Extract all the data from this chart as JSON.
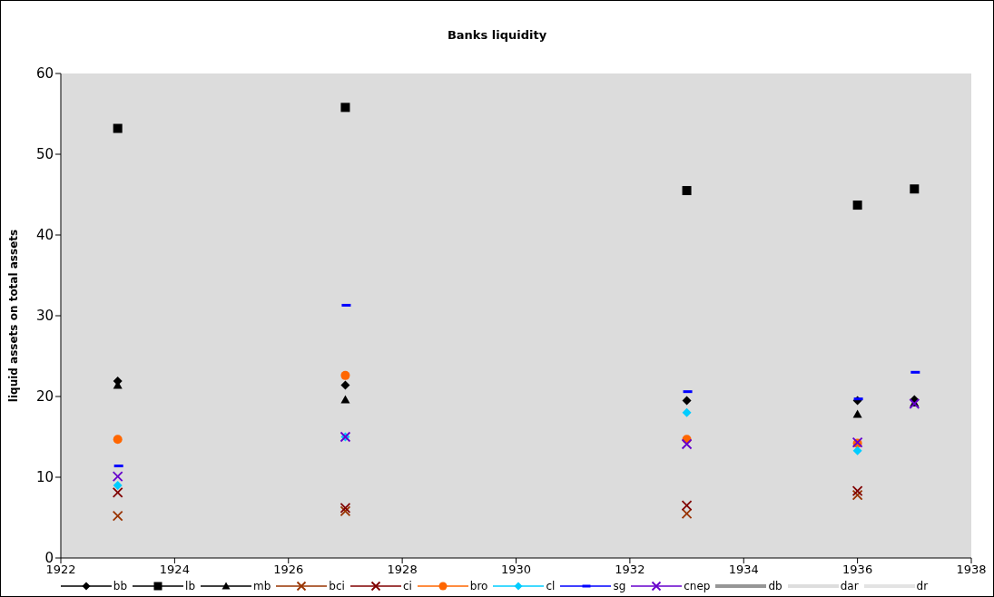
{
  "chart_data": {
    "type": "scatter",
    "title": "Banks liquidity",
    "ylabel": "liquid assets on total assets",
    "x": [
      1923,
      1927,
      1933,
      1936,
      1937
    ],
    "xlim": [
      1922,
      1938
    ],
    "xticks": [
      1922,
      1924,
      1926,
      1928,
      1930,
      1932,
      1934,
      1936,
      1938
    ],
    "ylim": [
      0,
      60
    ],
    "yticks": [
      0,
      10,
      20,
      30,
      40,
      50,
      60
    ],
    "grid": false,
    "legend": "bottom",
    "series": [
      {
        "name": "bb",
        "color": "#000000",
        "marker": "diamond",
        "values": [
          21.9,
          21.4,
          19.5,
          19.5,
          19.6
        ]
      },
      {
        "name": "lb",
        "color": "#000000",
        "marker": "square",
        "values": [
          53.2,
          55.8,
          45.5,
          43.7,
          45.7
        ]
      },
      {
        "name": "mb",
        "color": "#000000",
        "marker": "triangle",
        "values": [
          21.4,
          19.6,
          null,
          17.8,
          19.2
        ]
      },
      {
        "name": "bci",
        "color": "#993300",
        "marker": "cross",
        "values": [
          5.2,
          5.8,
          5.5,
          7.8,
          null
        ]
      },
      {
        "name": "ci",
        "color": "#800000",
        "marker": "cross",
        "values": [
          8.1,
          6.2,
          6.5,
          8.3,
          null
        ]
      },
      {
        "name": "bro",
        "color": "#ff6600",
        "marker": "circle",
        "values": [
          14.7,
          22.6,
          14.7,
          14.2,
          null
        ]
      },
      {
        "name": "cl",
        "color": "#00ccff",
        "marker": "diamond",
        "values": [
          9.0,
          15.0,
          18.0,
          13.3,
          null
        ]
      },
      {
        "name": "sg",
        "color": "#0000ff",
        "values": [
          11.4,
          31.3,
          20.6,
          19.7,
          23.0
        ]
      },
      {
        "name": "cnep",
        "color": "#6600cc",
        "marker": "cross",
        "values": [
          10.1,
          15.0,
          14.1,
          14.3,
          19.1
        ]
      },
      {
        "name": "db",
        "color": "#969696",
        "marker": "none",
        "values": [
          null,
          null,
          null,
          null,
          null
        ]
      },
      {
        "name": "dar",
        "color": "#dddddd",
        "marker": "none",
        "values": [
          null,
          null,
          null,
          null,
          null
        ]
      },
      {
        "name": "dr",
        "color": "#e3e3e3",
        "marker": "none",
        "values": [
          null,
          null,
          null,
          null,
          null
        ]
      }
    ]
  }
}
